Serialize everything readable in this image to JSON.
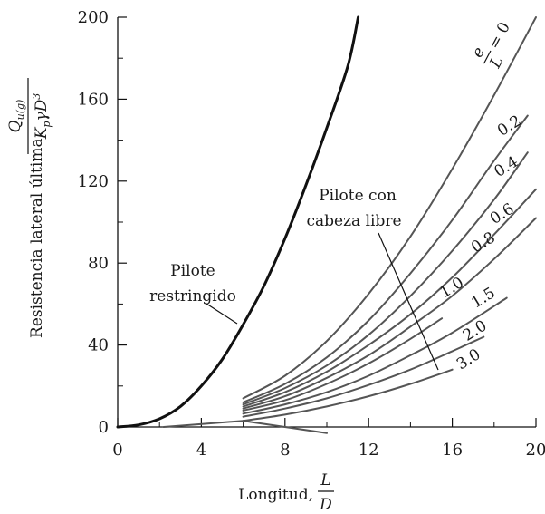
{
  "chart_data": {
    "type": "line",
    "xlabel": "Longitud,",
    "xlabel_fraction": {
      "numerator": "L",
      "denominator": "D"
    },
    "ylabel": "Resistencia lateral última,",
    "ylabel_fraction": {
      "numerator": "Q",
      "numerator_sub": "u(g)",
      "denominator": "K",
      "denominator_sub": "p",
      "denominator_rest": "γD",
      "denominator_sup": "3"
    },
    "xlim": [
      0,
      20
    ],
    "ylim": [
      0,
      200
    ],
    "x_ticks": [
      "0",
      "4",
      "8",
      "12",
      "16",
      "20"
    ],
    "y_ticks": [
      "0",
      "40",
      "80",
      "120",
      "160",
      "200"
    ],
    "grid": false,
    "annotations": {
      "restrained": [
        "Pilote",
        "restringido"
      ],
      "free_head": [
        "Pilote con",
        "cabeza libre"
      ],
      "e_over_L": {
        "numerator": "e",
        "denominator": "L",
        "equals": "= 0"
      }
    },
    "series": [
      {
        "name": "Pilote restringido",
        "x": [
          0,
          1,
          2,
          3,
          4,
          5,
          6,
          7,
          8,
          9,
          10,
          11,
          11.5
        ],
        "y": [
          0,
          1,
          4,
          10,
          20,
          33,
          50,
          69,
          92,
          118,
          146,
          176,
          200
        ]
      },
      {
        "name": "0",
        "x": [
          6,
          8,
          10,
          12,
          14,
          16,
          18,
          20
        ],
        "y": [
          14,
          25,
          42,
          65,
          93,
          126,
          162,
          200
        ]
      },
      {
        "name": "0.2",
        "x": [
          6,
          8,
          10,
          12,
          14,
          16,
          18,
          19.6
        ],
        "y": [
          12,
          21,
          34,
          52,
          75,
          101,
          130,
          152
        ]
      },
      {
        "name": "0.4",
        "x": [
          6,
          8,
          10,
          12,
          14,
          16,
          18,
          19.6
        ],
        "y": [
          11,
          19,
          30,
          45,
          64,
          86,
          111,
          134
        ]
      },
      {
        "name": "0.6",
        "x": [
          6,
          8,
          10,
          12,
          14,
          16,
          18,
          20
        ],
        "y": [
          10,
          17,
          27,
          40,
          55,
          73,
          94,
          116
        ]
      },
      {
        "name": "0.8",
        "x": [
          6,
          8,
          10,
          12,
          14,
          16,
          18,
          20
        ],
        "y": [
          9,
          15,
          24,
          35,
          49,
          64,
          82,
          102
        ]
      },
      {
        "name": "1.0",
        "x": [
          6,
          8,
          10,
          12,
          14,
          15.5
        ],
        "y": [
          8,
          13,
          21,
          31,
          43,
          53
        ]
      },
      {
        "name": "1.5",
        "x": [
          6,
          8,
          10,
          12,
          14,
          16,
          18.6
        ],
        "y": [
          6.5,
          11,
          17,
          25,
          35,
          46,
          63
        ]
      },
      {
        "name": "2.0",
        "x": [
          6,
          8,
          10,
          12,
          14,
          16,
          17.5
        ],
        "y": [
          5,
          9,
          14,
          20.5,
          28,
          37,
          44
        ]
      },
      {
        "name": "3.0",
        "x": [
          6,
          8,
          10,
          12,
          14,
          16
        ],
        "y": [
          3,
          6,
          10,
          15,
          21,
          28
        ]
      },
      {
        "name": "",
        "x": [
          6,
          10
        ],
        "y": [
          3,
          -3
        ]
      },
      {
        "name": "",
        "x": [
          2.2,
          6
        ],
        "y": [
          0,
          3
        ]
      }
    ],
    "curve_labels": [
      {
        "text": "0.2",
        "x": 18.85,
        "y": 145
      },
      {
        "text": "0.4",
        "x": 18.7,
        "y": 125
      },
      {
        "text": "0.6",
        "x": 18.5,
        "y": 102
      },
      {
        "text": "0.8",
        "x": 17.6,
        "y": 88
      },
      {
        "text": "1.0",
        "x": 16.1,
        "y": 66
      },
      {
        "text": "1.5",
        "x": 17.6,
        "y": 61
      },
      {
        "text": "2.0",
        "x": 17.2,
        "y": 45
      },
      {
        "text": "3.0",
        "x": 16.9,
        "y": 31
      }
    ]
  }
}
